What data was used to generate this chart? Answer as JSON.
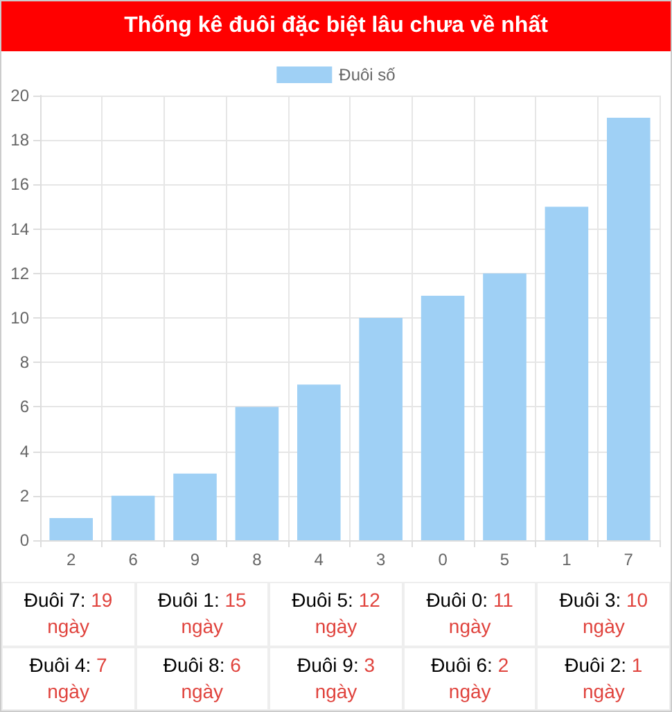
{
  "chart_data": {
    "type": "bar",
    "title": "Thống kê đuôi đặc biệt lâu chưa về nhất",
    "categories": [
      "2",
      "6",
      "9",
      "8",
      "4",
      "3",
      "0",
      "5",
      "1",
      "7"
    ],
    "series": [
      {
        "name": "Đuôi số",
        "color": "#9fd0f5",
        "values": [
          1,
          2,
          3,
          6,
          7,
          10,
          11,
          12,
          15,
          19
        ]
      }
    ],
    "ylim": [
      0,
      20
    ],
    "yticks": [
      0,
      2,
      4,
      6,
      8,
      10,
      12,
      14,
      16,
      18,
      20
    ],
    "grid": true,
    "legend": "top",
    "annotations": [
      "Đuôi 7: 19 ngày",
      "Đuôi 1: 15 ngày",
      "Đuôi 5: 12 ngày",
      "Đuôi 0: 11 ngày",
      "Đuôi 3: 10 ngày",
      "Đuôi 4: 7 ngày",
      "Đuôi 8: 6 ngày",
      "Đuôi 9: 3 ngày",
      "Đuôi 6: 2 ngày",
      "Đuôi 2: 1 ngày"
    ]
  }
}
